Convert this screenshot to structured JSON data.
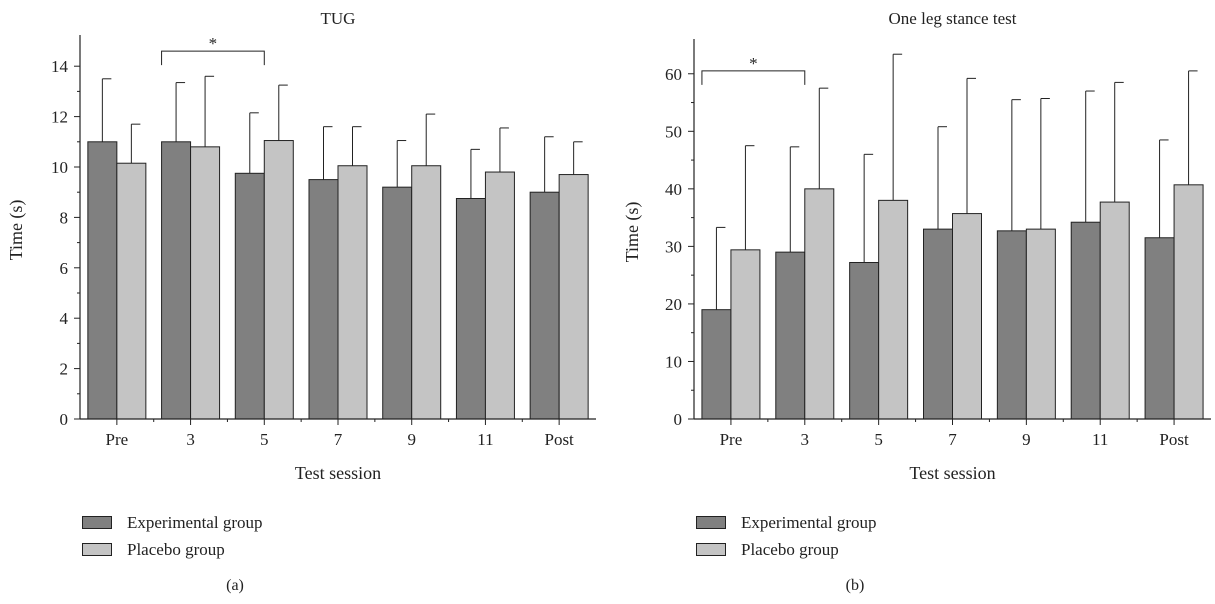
{
  "colors": {
    "experimental": "#808080",
    "placebo": "#c4c4c4",
    "axis": "#222222"
  },
  "chart_data": [
    {
      "type": "bar",
      "panel_label": "(a)",
      "title": "TUG",
      "xlabel": "Test session",
      "ylabel": "Time (s)",
      "ylim": [
        0,
        15
      ],
      "yticks": [
        0,
        2,
        4,
        6,
        8,
        10,
        12,
        14
      ],
      "yticks_labels": [
        "0",
        "2",
        "4",
        "6",
        "8",
        "10",
        "12",
        "14"
      ],
      "categories": [
        "Pre",
        "3",
        "5",
        "7",
        "9",
        "11",
        "Post"
      ],
      "series": [
        {
          "name": "Experimental group",
          "values": [
            11.0,
            11.0,
            9.75,
            9.5,
            9.2,
            8.75,
            9.0
          ],
          "error_upper": [
            13.5,
            13.35,
            12.15,
            11.6,
            11.05,
            10.7,
            11.2
          ]
        },
        {
          "name": "Placebo group",
          "values": [
            10.15,
            10.8,
            11.05,
            10.05,
            10.05,
            9.8,
            9.7
          ],
          "error_upper": [
            11.7,
            13.6,
            13.25,
            11.6,
            12.1,
            11.55,
            11.0
          ]
        }
      ],
      "significance": [
        {
          "from": 1,
          "to": 2,
          "label": "*",
          "y": 14.6
        }
      ],
      "legend_position": "bottom-left",
      "grid": false
    },
    {
      "type": "bar",
      "panel_label": "(b)",
      "title": "One leg stance test",
      "xlabel": "Test session",
      "ylabel": "Time (s)",
      "ylim": [
        0,
        65
      ],
      "yticks": [
        0,
        10,
        20,
        30,
        40,
        50,
        60
      ],
      "yticks_labels": [
        "0",
        "10",
        "20",
        "30",
        "40",
        "50",
        "60"
      ],
      "categories": [
        "Pre",
        "3",
        "5",
        "7",
        "9",
        "11",
        "Post"
      ],
      "series": [
        {
          "name": "Experimental group",
          "values": [
            19.0,
            29.0,
            27.2,
            33.0,
            32.7,
            34.2,
            31.5
          ],
          "error_upper": [
            33.3,
            47.3,
            46.0,
            50.8,
            55.5,
            57.0,
            48.5
          ]
        },
        {
          "name": "Placebo group",
          "values": [
            29.4,
            40.0,
            38.0,
            35.7,
            33.0,
            37.7,
            40.7
          ],
          "error_upper": [
            47.5,
            57.5,
            63.4,
            59.2,
            55.7,
            58.5,
            60.5
          ]
        }
      ],
      "significance": [
        {
          "from": 0,
          "to": 1,
          "label": "*",
          "y": 60.5
        }
      ],
      "legend_position": "bottom-left",
      "grid": false
    }
  ]
}
